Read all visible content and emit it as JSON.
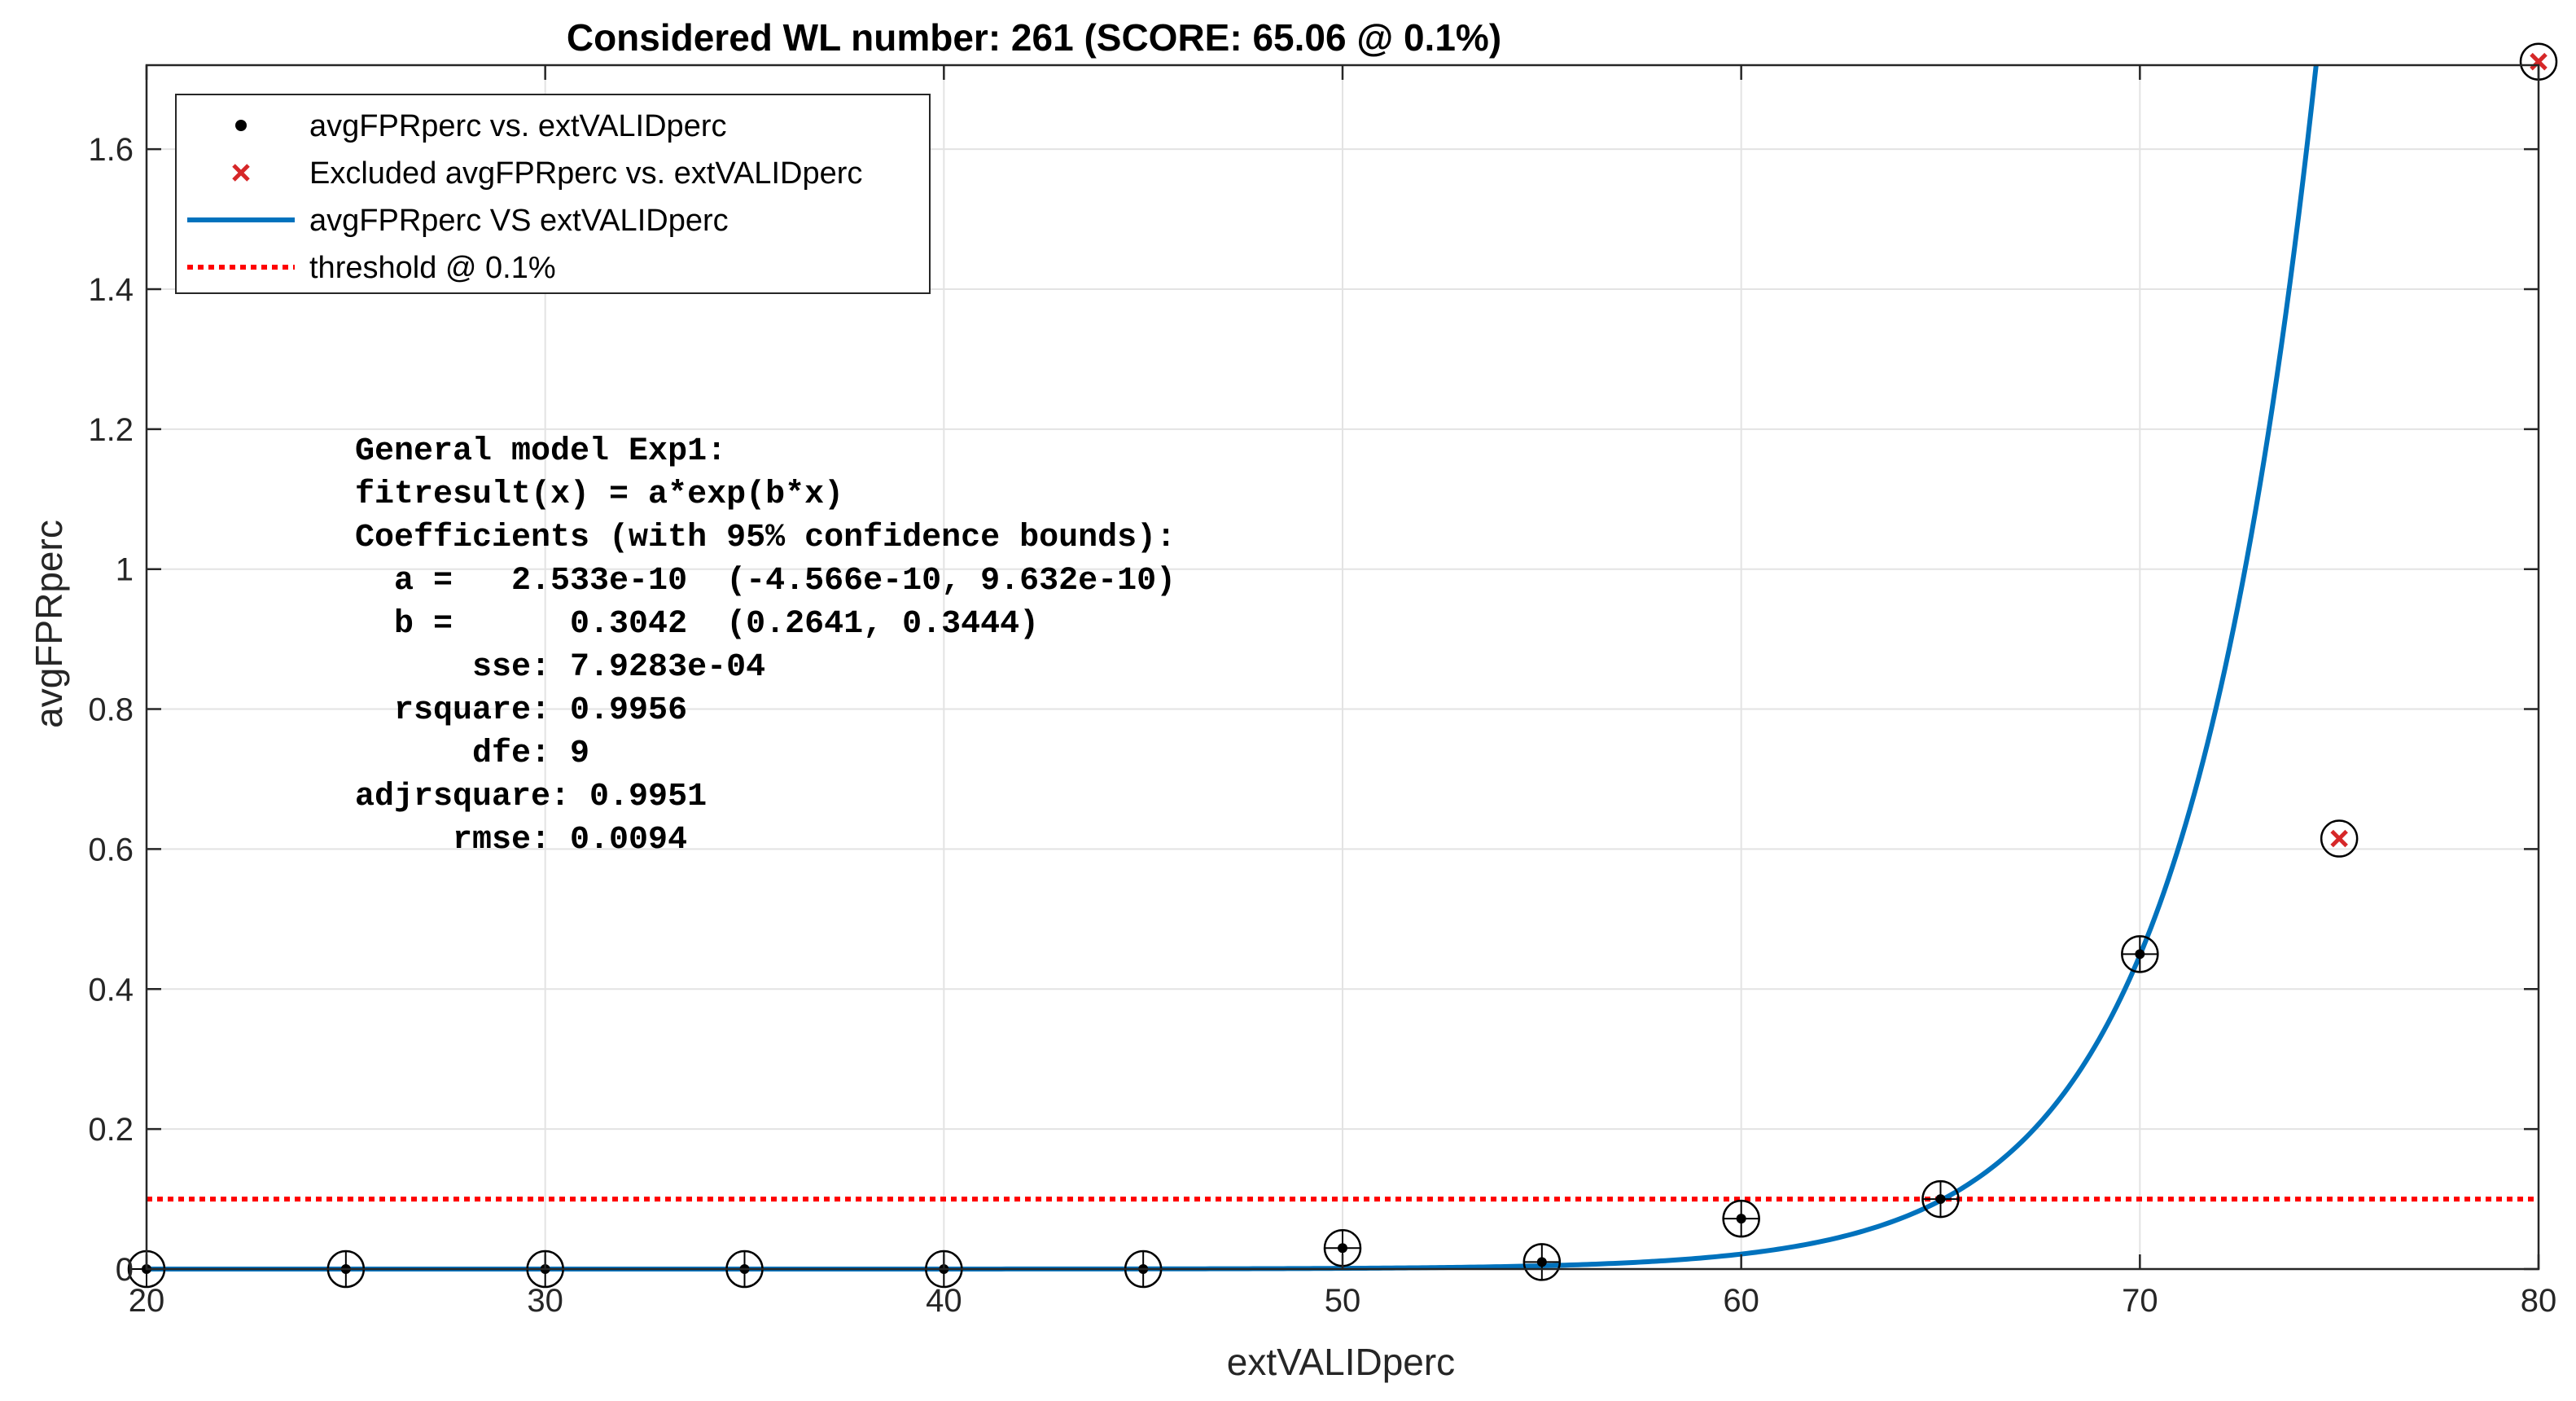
{
  "chart_data": {
    "type": "scatter",
    "title": "Considered WL number: 261 (SCORE: 65.06 @ 0.1%)",
    "xlabel": "extVALIDperc",
    "ylabel": "avgFPRperc",
    "xlim": [
      20,
      80
    ],
    "ylim": [
      0,
      1.72
    ],
    "xticks": [
      20,
      30,
      40,
      50,
      60,
      70,
      80
    ],
    "yticks": [
      0,
      0.2,
      0.4,
      0.6,
      0.8,
      1,
      1.2,
      1.4,
      1.6
    ],
    "grid": true,
    "legend_position": "top-left",
    "legend": [
      {
        "label": "avgFPRperc vs. extVALIDperc",
        "marker": "dot",
        "color": "#000000"
      },
      {
        "label": "Excluded avgFPRperc vs. extVALIDperc",
        "marker": "x",
        "color": "#D62728"
      },
      {
        "label": "avgFPRperc VS extVALIDperc",
        "marker": "line",
        "color": "#0072BD"
      },
      {
        "label": "threshold @ 0.1%",
        "marker": "dotted-line",
        "color": "#FF0000"
      }
    ],
    "series": [
      {
        "name": "avgFPRperc vs. extVALIDperc",
        "x": [
          20,
          25,
          30,
          35,
          40,
          45,
          50,
          55,
          60,
          65,
          70
        ],
        "y": [
          0.0,
          0.0,
          0.0,
          0.0,
          0.0,
          0.0,
          0.03,
          0.01,
          0.072,
          0.1,
          0.45
        ]
      },
      {
        "name": "Excluded avgFPRperc vs. extVALIDperc",
        "x": [
          75,
          80
        ],
        "y": [
          0.615,
          1.725
        ]
      }
    ],
    "fit": {
      "a": 2.533e-10,
      "b": 0.3042
    },
    "threshold": 0.1,
    "annotation": [
      "General model Exp1:",
      "fitresult(x) = a*exp(b*x)",
      "Coefficients (with 95% confidence bounds):",
      "  a =   2.533e-10  (-4.566e-10, 9.632e-10)",
      "  b =      0.3042  (0.2641, 0.3444)",
      "      sse: 7.9283e-04",
      "  rsquare: 0.9956",
      "      dfe: 9",
      "adjrsquare: 0.9951",
      "     rmse: 0.0094"
    ],
    "colors": {
      "fit": "#0072BD",
      "threshold": "#FF0000",
      "excluded": "#D62728",
      "points": "#000000",
      "grid": "#E3E3E3"
    }
  }
}
